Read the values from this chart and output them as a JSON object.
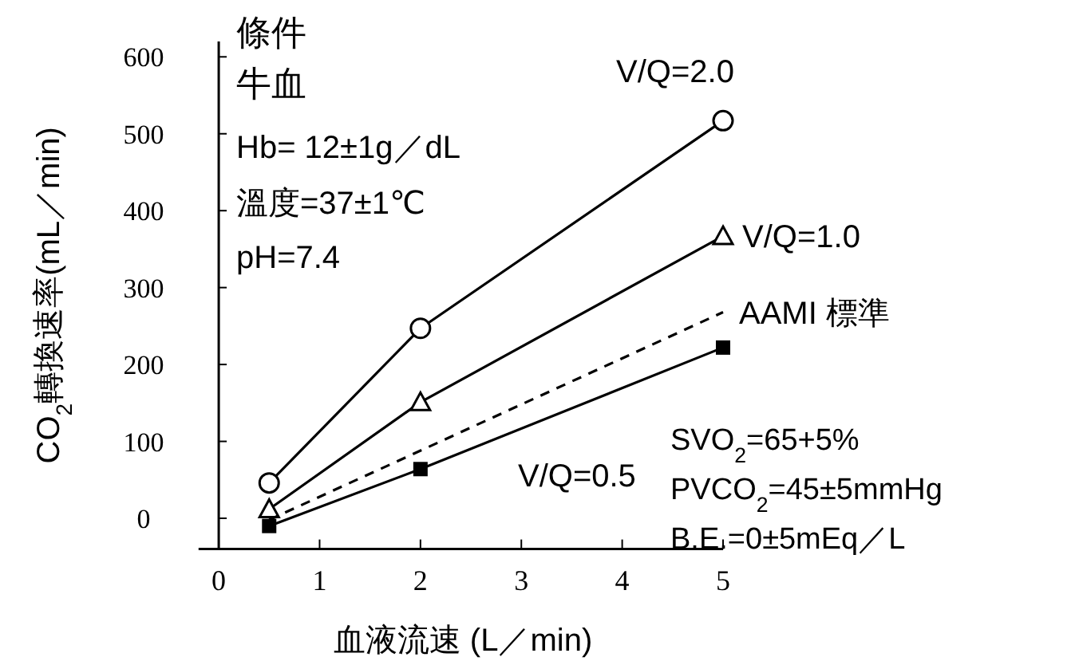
{
  "chart_data": {
    "type": "line",
    "xlabel": "血液流速 (L／min)",
    "ylabel": "CO$_{2}$轉換速率(mL／min)",
    "xlim": [
      -0.2,
      5
    ],
    "ylim": [
      -40,
      620
    ],
    "xticks": [
      0,
      1,
      2,
      3,
      4,
      5
    ],
    "yticks": [
      0,
      100,
      200,
      300,
      400,
      500,
      600
    ],
    "grid": false,
    "x": [
      0.5,
      2,
      5
    ],
    "series": [
      {
        "name": "V/Q=2.0",
        "color": "#000000",
        "marker": "circle",
        "line_style": "solid",
        "values": [
          46,
          247,
          517
        ]
      },
      {
        "name": "V/Q=1.0",
        "color": "#000000",
        "marker": "triangle",
        "line_style": "solid",
        "values": [
          12,
          151,
          367
        ]
      },
      {
        "name": "AAMI 標準",
        "color": "#000000",
        "marker": "none",
        "line_style": "dashed",
        "values": [
          -2,
          null,
          268
        ]
      },
      {
        "name": "V/Q=0.5",
        "color": "#000000",
        "marker": "square",
        "line_style": "solid",
        "values": [
          -10,
          64,
          222
        ]
      }
    ],
    "annotations": [
      "條件",
      "牛血",
      "Hb= 12±1g／dL",
      "溫度=37±1℃",
      "pH=7.4",
      "SVO$_{2}$=65+5%",
      "PVCO$_{2}$=45±5mmHg",
      "B.E.=0±5mEq／L"
    ]
  }
}
